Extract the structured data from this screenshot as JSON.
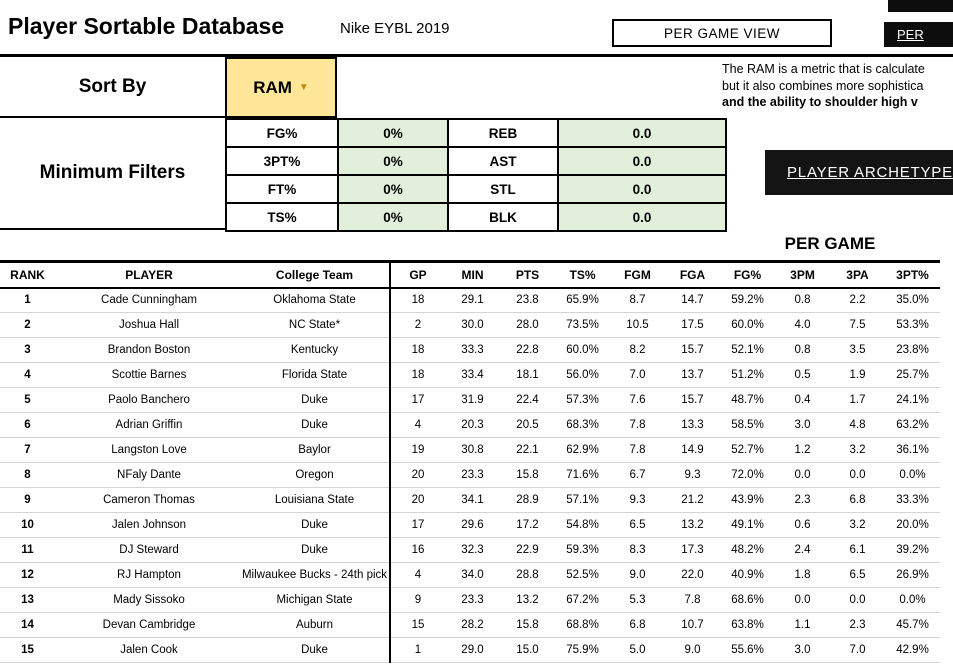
{
  "colors": {
    "filter_value_bg": "#E2EFDA",
    "ram_dropdown_bg": "#FFE699",
    "dark_button_bg": "#141414"
  },
  "header": {
    "title": "Player Sortable Database",
    "subtitle": "Nike EYBL 2019",
    "per_game_view_button": "PER GAME VIEW",
    "per_40_button": "PER"
  },
  "sort_by": {
    "label": "Sort By",
    "value": "RAM"
  },
  "ram_description": {
    "line1": "The RAM is a metric that is calculate",
    "line2": "but it also combines more sophistica",
    "line3": "and the ability to shoulder high v"
  },
  "minimum_filters": {
    "label": "Minimum Filters",
    "rows": [
      {
        "stat1": "FG%",
        "val1": "0%",
        "stat2": "REB",
        "val2": "0.0"
      },
      {
        "stat1": "3PT%",
        "val1": "0%",
        "stat2": "AST",
        "val2": "0.0"
      },
      {
        "stat1": "FT%",
        "val1": "0%",
        "stat2": "STL",
        "val2": "0.0"
      },
      {
        "stat1": "TS%",
        "val1": "0%",
        "stat2": "BLK",
        "val2": "0.0"
      }
    ]
  },
  "player_archetype_button": "PLAYER ARCHETYPE",
  "per_game_label": "PER GAME",
  "table": {
    "columns": [
      "RANK",
      "PLAYER",
      "College Team",
      "GP",
      "MIN",
      "PTS",
      "TS%",
      "FGM",
      "FGA",
      "FG%",
      "3PM",
      "3PA",
      "3PT%"
    ],
    "rows": [
      {
        "rank": "1",
        "player": "Cade Cunningham",
        "team": "Oklahoma State",
        "stats": [
          "18",
          "29.1",
          "23.8",
          "65.9%",
          "8.7",
          "14.7",
          "59.2%",
          "0.8",
          "2.2",
          "35.0%"
        ]
      },
      {
        "rank": "2",
        "player": "Joshua Hall",
        "team": "NC State*",
        "stats": [
          "2",
          "30.0",
          "28.0",
          "73.5%",
          "10.5",
          "17.5",
          "60.0%",
          "4.0",
          "7.5",
          "53.3%"
        ]
      },
      {
        "rank": "3",
        "player": "Brandon Boston",
        "team": "Kentucky",
        "stats": [
          "18",
          "33.3",
          "22.8",
          "60.0%",
          "8.2",
          "15.7",
          "52.1%",
          "0.8",
          "3.5",
          "23.8%"
        ]
      },
      {
        "rank": "4",
        "player": "Scottie Barnes",
        "team": "Florida State",
        "stats": [
          "18",
          "33.4",
          "18.1",
          "56.0%",
          "7.0",
          "13.7",
          "51.2%",
          "0.5",
          "1.9",
          "25.7%"
        ]
      },
      {
        "rank": "5",
        "player": "Paolo Banchero",
        "team": "Duke",
        "stats": [
          "17",
          "31.9",
          "22.4",
          "57.3%",
          "7.6",
          "15.7",
          "48.7%",
          "0.4",
          "1.7",
          "24.1%"
        ]
      },
      {
        "rank": "6",
        "player": "Adrian Griffin",
        "team": "Duke",
        "stats": [
          "4",
          "20.3",
          "20.5",
          "68.3%",
          "7.8",
          "13.3",
          "58.5%",
          "3.0",
          "4.8",
          "63.2%"
        ]
      },
      {
        "rank": "7",
        "player": "Langston Love",
        "team": "Baylor",
        "stats": [
          "19",
          "30.8",
          "22.1",
          "62.9%",
          "7.8",
          "14.9",
          "52.7%",
          "1.2",
          "3.2",
          "36.1%"
        ]
      },
      {
        "rank": "8",
        "player": "NFaly Dante",
        "team": "Oregon",
        "stats": [
          "20",
          "23.3",
          "15.8",
          "71.6%",
          "6.7",
          "9.3",
          "72.0%",
          "0.0",
          "0.0",
          "0.0%"
        ]
      },
      {
        "rank": "9",
        "player": "Cameron Thomas",
        "team": "Louisiana State",
        "stats": [
          "20",
          "34.1",
          "28.9",
          "57.1%",
          "9.3",
          "21.2",
          "43.9%",
          "2.3",
          "6.8",
          "33.3%"
        ]
      },
      {
        "rank": "10",
        "player": "Jalen Johnson",
        "team": "Duke",
        "stats": [
          "17",
          "29.6",
          "17.2",
          "54.8%",
          "6.5",
          "13.2",
          "49.1%",
          "0.6",
          "3.2",
          "20.0%"
        ]
      },
      {
        "rank": "11",
        "player": "DJ Steward",
        "team": "Duke",
        "stats": [
          "16",
          "32.3",
          "22.9",
          "59.3%",
          "8.3",
          "17.3",
          "48.2%",
          "2.4",
          "6.1",
          "39.2%"
        ]
      },
      {
        "rank": "12",
        "player": "RJ Hampton",
        "team": "Milwaukee Bucks - 24th pick",
        "stats": [
          "4",
          "34.0",
          "28.8",
          "52.5%",
          "9.0",
          "22.0",
          "40.9%",
          "1.8",
          "6.5",
          "26.9%"
        ]
      },
      {
        "rank": "13",
        "player": "Mady Sissoko",
        "team": "Michigan State",
        "stats": [
          "9",
          "23.3",
          "13.2",
          "67.2%",
          "5.3",
          "7.8",
          "68.6%",
          "0.0",
          "0.0",
          "0.0%"
        ]
      },
      {
        "rank": "14",
        "player": "Devan Cambridge",
        "team": "Auburn",
        "stats": [
          "15",
          "28.2",
          "15.8",
          "68.8%",
          "6.8",
          "10.7",
          "63.8%",
          "1.1",
          "2.3",
          "45.7%"
        ]
      },
      {
        "rank": "15",
        "player": "Jalen Cook",
        "team": "Duke",
        "stats": [
          "1",
          "29.0",
          "15.0",
          "75.9%",
          "5.0",
          "9.0",
          "55.6%",
          "3.0",
          "7.0",
          "42.9%"
        ]
      }
    ]
  }
}
